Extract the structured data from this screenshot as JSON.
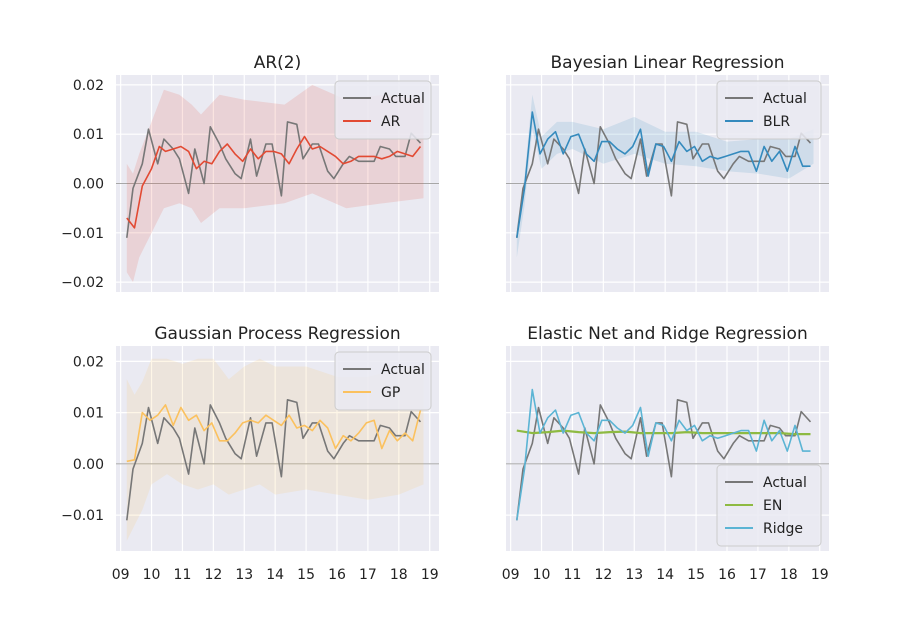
{
  "chart_data": [
    {
      "type": "line",
      "title": "AR(2)",
      "ylim": [
        -0.022,
        0.022
      ],
      "yticks": [
        -0.02,
        -0.01,
        0.0,
        0.01,
        0.02
      ],
      "ytick_labels": [
        "−0.02",
        "−0.01",
        "0.00",
        "0.01",
        "0.02"
      ],
      "legend_position": "top-right",
      "band": {
        "color": "#e24a33",
        "x": [
          9.2,
          9.4,
          9.6,
          10.4,
          10.9,
          11.3,
          11.6,
          12.2,
          13.0,
          14.3,
          15.2,
          16.3,
          17.5,
          18.8
        ],
        "upper": [
          0.004,
          0.002,
          0.006,
          0.019,
          0.018,
          0.016,
          0.014,
          0.018,
          0.017,
          0.016,
          0.02,
          0.017,
          0.018,
          0.017
        ],
        "lower": [
          -0.018,
          -0.02,
          -0.015,
          -0.005,
          -0.004,
          -0.005,
          -0.008,
          -0.005,
          -0.005,
          -0.004,
          -0.002,
          -0.005,
          -0.004,
          -0.003
        ]
      },
      "series": [
        {
          "name": "Actual",
          "color": "#777777",
          "x": [
            9.2,
            9.4,
            9.7,
            9.9,
            10.2,
            10.4,
            10.7,
            10.9,
            11.2,
            11.4,
            11.7,
            11.9,
            12.2,
            12.4,
            12.7,
            12.9,
            13.2,
            13.4,
            13.7,
            13.9,
            14.2,
            14.4,
            14.7,
            14.9,
            15.2,
            15.4,
            15.7,
            15.9,
            16.2,
            16.4,
            16.7,
            16.9,
            17.2,
            17.4,
            17.7,
            17.9,
            18.2,
            18.4,
            18.7
          ],
          "values": [
            -0.011,
            -0.001,
            0.004,
            0.011,
            0.004,
            0.009,
            0.007,
            0.005,
            -0.002,
            0.007,
            0.0,
            0.0115,
            0.008,
            0.005,
            0.002,
            0.001,
            0.009,
            0.0015,
            0.008,
            0.008,
            -0.0025,
            0.0125,
            0.012,
            0.005,
            0.008,
            0.008,
            0.0025,
            0.001,
            0.004,
            0.0055,
            0.0045,
            0.0045,
            0.0045,
            0.0075,
            0.007,
            0.0055,
            0.0055,
            0.0102,
            0.0082
          ]
        },
        {
          "name": "AR",
          "color": "#e24a33",
          "x": [
            9.2,
            9.45,
            9.7,
            10.0,
            10.25,
            10.45,
            10.7,
            10.95,
            11.2,
            11.45,
            11.7,
            11.95,
            12.2,
            12.45,
            12.7,
            12.95,
            13.2,
            13.45,
            13.7,
            13.95,
            14.2,
            14.45,
            14.7,
            14.95,
            15.2,
            15.45,
            15.7,
            15.95,
            16.2,
            16.45,
            16.7,
            16.95,
            17.2,
            17.45,
            17.7,
            17.95,
            18.2,
            18.45,
            18.7
          ],
          "values": [
            -0.007,
            -0.009,
            -0.0005,
            0.003,
            0.0075,
            0.0065,
            0.007,
            0.0075,
            0.0065,
            0.003,
            0.0045,
            0.004,
            0.0065,
            0.008,
            0.006,
            0.0045,
            0.007,
            0.005,
            0.0065,
            0.0065,
            0.006,
            0.004,
            0.007,
            0.0095,
            0.007,
            0.0075,
            0.0065,
            0.0055,
            0.004,
            0.0045,
            0.0055,
            0.0055,
            0.0055,
            0.005,
            0.0055,
            0.0065,
            0.006,
            0.0055,
            0.0075
          ]
        }
      ]
    },
    {
      "type": "line",
      "title": "Bayesian Linear Regression",
      "ylim": [
        -0.022,
        0.022
      ],
      "legend_position": "top-right",
      "band": {
        "color": "#348abd",
        "x": [
          9.2,
          9.45,
          9.7,
          10.0,
          10.5,
          11.0,
          12.0,
          13.0,
          14.0,
          15.0,
          16.0,
          17.0,
          18.0,
          18.8
        ],
        "upper": [
          -0.009,
          0.0015,
          0.018,
          0.0095,
          0.0125,
          0.0125,
          0.011,
          0.0135,
          0.0105,
          0.0105,
          0.0085,
          0.009,
          0.009,
          0.011
        ],
        "lower": [
          -0.015,
          -0.0045,
          0.011,
          0.003,
          0.006,
          0.007,
          0.004,
          0.006,
          0.004,
          0.0035,
          0.0025,
          0.002,
          0.001,
          0.004
        ]
      },
      "series": [
        {
          "name": "Actual",
          "color": "#777777",
          "x": [
            9.2,
            9.4,
            9.7,
            9.9,
            10.2,
            10.4,
            10.7,
            10.9,
            11.2,
            11.4,
            11.7,
            11.9,
            12.2,
            12.4,
            12.7,
            12.9,
            13.2,
            13.4,
            13.7,
            13.9,
            14.2,
            14.4,
            14.7,
            14.9,
            15.2,
            15.4,
            15.7,
            15.9,
            16.2,
            16.4,
            16.7,
            16.9,
            17.2,
            17.4,
            17.7,
            17.9,
            18.2,
            18.4,
            18.7
          ],
          "values": [
            -0.011,
            -0.001,
            0.004,
            0.011,
            0.004,
            0.009,
            0.007,
            0.005,
            -0.002,
            0.007,
            0.0,
            0.0115,
            0.008,
            0.005,
            0.002,
            0.001,
            0.009,
            0.0015,
            0.008,
            0.008,
            -0.0025,
            0.0125,
            0.012,
            0.005,
            0.008,
            0.008,
            0.0025,
            0.001,
            0.004,
            0.0055,
            0.0045,
            0.0045,
            0.0045,
            0.0075,
            0.007,
            0.0055,
            0.0055,
            0.0102,
            0.0082
          ]
        },
        {
          "name": "BLR",
          "color": "#348abd",
          "x": [
            9.2,
            9.45,
            9.7,
            9.95,
            10.2,
            10.45,
            10.7,
            10.95,
            11.2,
            11.45,
            11.7,
            11.95,
            12.2,
            12.45,
            12.7,
            12.95,
            13.2,
            13.45,
            13.7,
            13.95,
            14.2,
            14.45,
            14.7,
            14.95,
            15.2,
            15.45,
            15.7,
            15.95,
            16.2,
            16.45,
            16.7,
            16.95,
            17.2,
            17.45,
            17.7,
            17.95,
            18.2,
            18.45,
            18.7
          ],
          "values": [
            -0.011,
            -0.001,
            0.0145,
            0.006,
            0.009,
            0.0105,
            0.006,
            0.0095,
            0.01,
            0.006,
            0.0045,
            0.0085,
            0.0085,
            0.007,
            0.006,
            0.0075,
            0.011,
            0.0015,
            0.008,
            0.0075,
            0.0045,
            0.0085,
            0.0065,
            0.0075,
            0.0045,
            0.0055,
            0.005,
            0.0055,
            0.006,
            0.0065,
            0.0065,
            0.0025,
            0.0075,
            0.0045,
            0.0065,
            0.0025,
            0.0075,
            0.0035,
            0.0035
          ]
        }
      ]
    },
    {
      "type": "line",
      "title": "Gaussian Process Regression",
      "ylim": [
        -0.017,
        0.023
      ],
      "yticks": [
        -0.01,
        0.0,
        0.01,
        0.02
      ],
      "ytick_labels": [
        "−0.01",
        "0.00",
        "0.01",
        "0.02"
      ],
      "xticks": [
        9,
        10,
        11,
        12,
        13,
        14,
        15,
        16,
        17,
        18,
        19
      ],
      "xtick_labels": [
        "09",
        "10",
        "11",
        "12",
        "13",
        "14",
        "15",
        "16",
        "17",
        "18",
        "19"
      ],
      "legend_position": "top-right",
      "band": {
        "color": "#fbc15e",
        "x": [
          9.2,
          9.45,
          9.7,
          10.0,
          10.5,
          11.0,
          11.5,
          12.0,
          12.5,
          13.0,
          13.5,
          14.0,
          15.0,
          16.0,
          17.0,
          18.0,
          18.8
        ],
        "upper": [
          0.0165,
          0.0135,
          0.016,
          0.0205,
          0.0205,
          0.0195,
          0.0205,
          0.0205,
          0.0165,
          0.019,
          0.0205,
          0.019,
          0.019,
          0.017,
          0.017,
          0.0185,
          0.0195
        ],
        "lower": [
          -0.015,
          -0.012,
          -0.009,
          -0.004,
          -0.002,
          -0.004,
          -0.005,
          -0.004,
          -0.006,
          -0.005,
          -0.004,
          -0.006,
          -0.005,
          -0.006,
          -0.007,
          -0.006,
          -0.004
        ]
      },
      "series": [
        {
          "name": "Actual",
          "color": "#777777",
          "x": [
            9.2,
            9.4,
            9.7,
            9.9,
            10.2,
            10.4,
            10.7,
            10.9,
            11.2,
            11.4,
            11.7,
            11.9,
            12.2,
            12.4,
            12.7,
            12.9,
            13.2,
            13.4,
            13.7,
            13.9,
            14.2,
            14.4,
            14.7,
            14.9,
            15.2,
            15.4,
            15.7,
            15.9,
            16.2,
            16.4,
            16.7,
            16.9,
            17.2,
            17.4,
            17.7,
            17.9,
            18.2,
            18.4,
            18.7
          ],
          "values": [
            -0.011,
            -0.001,
            0.004,
            0.011,
            0.004,
            0.009,
            0.007,
            0.005,
            -0.002,
            0.007,
            0.0,
            0.0115,
            0.008,
            0.005,
            0.002,
            0.001,
            0.009,
            0.0015,
            0.008,
            0.008,
            -0.0025,
            0.0125,
            0.012,
            0.005,
            0.008,
            0.008,
            0.0025,
            0.001,
            0.004,
            0.0055,
            0.0045,
            0.0045,
            0.0045,
            0.0075,
            0.007,
            0.0055,
            0.0055,
            0.0102,
            0.0082
          ]
        },
        {
          "name": "GP",
          "color": "#fbc15e",
          "x": [
            9.2,
            9.45,
            9.7,
            9.95,
            10.2,
            10.45,
            10.7,
            10.95,
            11.2,
            11.45,
            11.7,
            11.95,
            12.2,
            12.45,
            12.7,
            12.95,
            13.2,
            13.45,
            13.7,
            13.95,
            14.2,
            14.45,
            14.7,
            14.95,
            15.2,
            15.45,
            15.7,
            15.95,
            16.2,
            16.45,
            16.7,
            16.95,
            17.2,
            17.45,
            17.7,
            17.95,
            18.2,
            18.45,
            18.7
          ],
          "values": [
            0.0005,
            0.0008,
            0.01,
            0.0085,
            0.0095,
            0.0115,
            0.0075,
            0.011,
            0.0085,
            0.0095,
            0.0065,
            0.008,
            0.0045,
            0.0045,
            0.006,
            0.008,
            0.0085,
            0.008,
            0.0095,
            0.0085,
            0.0075,
            0.0095,
            0.007,
            0.0075,
            0.0065,
            0.0085,
            0.007,
            0.003,
            0.0055,
            0.0045,
            0.006,
            0.008,
            0.0085,
            0.003,
            0.0065,
            0.0045,
            0.006,
            0.0045,
            0.0105
          ]
        }
      ]
    },
    {
      "type": "line",
      "title": "Elastic Net and Ridge Regression",
      "ylim": [
        -0.017,
        0.023
      ],
      "xticks": [
        9,
        10,
        11,
        12,
        13,
        14,
        15,
        16,
        17,
        18,
        19
      ],
      "xtick_labels": [
        "09",
        "10",
        "11",
        "12",
        "13",
        "14",
        "15",
        "16",
        "17",
        "18",
        "19"
      ],
      "legend_position": "bottom-right",
      "series": [
        {
          "name": "Actual",
          "color": "#777777",
          "x": [
            9.2,
            9.4,
            9.7,
            9.9,
            10.2,
            10.4,
            10.7,
            10.9,
            11.2,
            11.4,
            11.7,
            11.9,
            12.2,
            12.4,
            12.7,
            12.9,
            13.2,
            13.4,
            13.7,
            13.9,
            14.2,
            14.4,
            14.7,
            14.9,
            15.2,
            15.4,
            15.7,
            15.9,
            16.2,
            16.4,
            16.7,
            16.9,
            17.2,
            17.4,
            17.7,
            17.9,
            18.2,
            18.4,
            18.7
          ],
          "values": [
            -0.011,
            -0.001,
            0.004,
            0.011,
            0.004,
            0.009,
            0.007,
            0.005,
            -0.002,
            0.007,
            0.0,
            0.0115,
            0.008,
            0.005,
            0.002,
            0.001,
            0.009,
            0.0015,
            0.008,
            0.008,
            -0.0025,
            0.0125,
            0.012,
            0.005,
            0.008,
            0.008,
            0.0025,
            0.001,
            0.004,
            0.0055,
            0.0045,
            0.0045,
            0.0045,
            0.0075,
            0.007,
            0.0055,
            0.0055,
            0.0102,
            0.0082
          ]
        },
        {
          "name": "EN",
          "color": "#8eba42",
          "x": [
            9.2,
            9.7,
            10.2,
            10.7,
            11.2,
            11.7,
            12.2,
            12.7,
            13.2,
            13.7,
            14.2,
            14.7,
            15.2,
            15.7,
            16.2,
            16.7,
            17.2,
            17.7,
            18.2,
            18.7
          ],
          "values": [
            0.0065,
            0.006,
            0.0062,
            0.0065,
            0.0062,
            0.006,
            0.0062,
            0.0063,
            0.006,
            0.006,
            0.006,
            0.0062,
            0.006,
            0.006,
            0.006,
            0.006,
            0.006,
            0.006,
            0.0058,
            0.0058
          ]
        },
        {
          "name": "Ridge",
          "color": "#5bb4d4",
          "x": [
            9.2,
            9.45,
            9.7,
            9.95,
            10.2,
            10.45,
            10.7,
            10.95,
            11.2,
            11.45,
            11.7,
            11.95,
            12.2,
            12.45,
            12.7,
            12.95,
            13.2,
            13.45,
            13.7,
            13.95,
            14.2,
            14.45,
            14.7,
            14.95,
            15.2,
            15.45,
            15.7,
            15.95,
            16.2,
            16.45,
            16.7,
            16.95,
            17.2,
            17.45,
            17.7,
            17.95,
            18.2,
            18.45,
            18.7
          ],
          "values": [
            -0.011,
            -0.001,
            0.0145,
            0.006,
            0.009,
            0.0105,
            0.006,
            0.0095,
            0.01,
            0.006,
            0.0045,
            0.0085,
            0.0085,
            0.007,
            0.006,
            0.0075,
            0.011,
            0.0015,
            0.008,
            0.0075,
            0.0045,
            0.0085,
            0.0065,
            0.0075,
            0.0045,
            0.0055,
            0.005,
            0.0055,
            0.006,
            0.0065,
            0.0065,
            0.0025,
            0.0085,
            0.0045,
            0.0065,
            0.0025,
            0.0075,
            0.0025,
            0.0025
          ]
        }
      ]
    }
  ]
}
